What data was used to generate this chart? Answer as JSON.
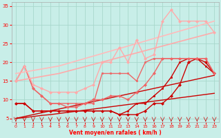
{
  "bg_color": "#c8eee8",
  "grid_color": "#a8d8cc",
  "text_color": "#ff0000",
  "xlabel": "Vent moyen/en rafales ( km/h )",
  "xlim": [
    -0.5,
    23.5
  ],
  "ylim": [
    4,
    36
  ],
  "yticks": [
    5,
    10,
    15,
    20,
    25,
    30,
    35
  ],
  "xticks": [
    0,
    1,
    2,
    3,
    4,
    5,
    6,
    7,
    8,
    9,
    10,
    11,
    12,
    13,
    14,
    15,
    16,
    17,
    18,
    19,
    20,
    21,
    22,
    23
  ],
  "lines": [
    {
      "x": [
        0,
        1,
        2,
        3,
        4,
        5,
        6,
        7,
        8,
        9,
        10,
        11,
        12,
        13,
        14,
        15,
        16,
        17,
        18,
        19,
        20,
        21,
        22,
        23
      ],
      "y": [
        5,
        5.5,
        6,
        6.5,
        7,
        7.5,
        8,
        8.5,
        9,
        9.5,
        10,
        10.5,
        11,
        11.5,
        12,
        12.5,
        13,
        13.5,
        14,
        14.5,
        15,
        15.5,
        16,
        16.5
      ],
      "color": "#cc0000",
      "lw": 1.0,
      "marker": null,
      "ms": 0
    },
    {
      "x": [
        0,
        1,
        2,
        3,
        4,
        5,
        6,
        7,
        8,
        9,
        10,
        11,
        12,
        13,
        14,
        15,
        16,
        17,
        18,
        19,
        20,
        21,
        22,
        23
      ],
      "y": [
        5,
        5.2,
        5.5,
        5.8,
        6,
        6.3,
        6.6,
        6.9,
        7.2,
        7.5,
        7.8,
        8.1,
        8.4,
        8.7,
        9,
        9.3,
        9.6,
        9.9,
        10.2,
        10.5,
        10.8,
        11.1,
        11.4,
        11.7
      ],
      "color": "#cc0000",
      "lw": 1.0,
      "marker": null,
      "ms": 0
    },
    {
      "x": [
        0,
        1,
        2,
        3,
        4,
        5,
        6,
        7,
        8,
        9,
        10,
        11,
        12,
        13,
        14,
        15,
        16,
        17,
        18,
        19,
        20,
        21,
        22,
        23
      ],
      "y": [
        9,
        9,
        7,
        7,
        7,
        7,
        7,
        7,
        7,
        7,
        7,
        7,
        6,
        6,
        6,
        7,
        9,
        9,
        11,
        14,
        20,
        21,
        20,
        17
      ],
      "color": "#cc0000",
      "lw": 1.0,
      "marker": "D",
      "ms": 2.0
    },
    {
      "x": [
        0,
        1,
        2,
        3,
        4,
        5,
        6,
        7,
        8,
        9,
        10,
        11,
        12,
        13,
        14,
        15,
        16,
        17,
        18,
        19,
        20,
        21,
        22,
        23
      ],
      "y": [
        9,
        9,
        7,
        7,
        7,
        7,
        7,
        7,
        7,
        7,
        7,
        7,
        6,
        7,
        9,
        9,
        11,
        13,
        16,
        20,
        21,
        21,
        19,
        17
      ],
      "color": "#cc0000",
      "lw": 1.0,
      "marker": "s",
      "ms": 2.0
    },
    {
      "x": [
        0,
        1,
        2,
        3,
        4,
        5,
        6,
        7,
        8,
        9,
        10,
        11,
        12,
        13,
        14,
        15,
        16,
        17,
        18,
        19,
        20,
        21,
        22,
        23
      ],
      "y": [
        15,
        19,
        13,
        11,
        9,
        9,
        8,
        8,
        9,
        10,
        10,
        11,
        11,
        10,
        12,
        14,
        17,
        21,
        21,
        21,
        21,
        21,
        21,
        17
      ],
      "color": "#ee6666",
      "lw": 1.0,
      "marker": "D",
      "ms": 2.0
    },
    {
      "x": [
        0,
        1,
        2,
        3,
        4,
        5,
        6,
        7,
        8,
        9,
        10,
        11,
        12,
        13,
        14,
        15,
        16,
        17,
        18,
        19,
        20,
        21,
        22,
        23
      ],
      "y": [
        15,
        19,
        13,
        11,
        9,
        9,
        9,
        9,
        9,
        9,
        17,
        17,
        17,
        17,
        15,
        20,
        21,
        21,
        21,
        21,
        21,
        21,
        21,
        17
      ],
      "color": "#ee6666",
      "lw": 1.0,
      "marker": "s",
      "ms": 2.0
    },
    {
      "x": [
        0,
        5,
        23
      ],
      "y": [
        15,
        17,
        28
      ],
      "color": "#ffaaaa",
      "lw": 1.2,
      "marker": null,
      "ms": 0
    },
    {
      "x": [
        0,
        5,
        23
      ],
      "y": [
        17,
        19,
        31
      ],
      "color": "#ffbbbb",
      "lw": 1.2,
      "marker": null,
      "ms": 0
    },
    {
      "x": [
        0,
        1,
        2,
        3,
        4,
        5,
        6,
        7,
        8,
        9,
        10,
        11,
        12,
        13,
        14,
        15,
        16,
        17,
        18,
        19,
        20,
        21,
        22,
        23
      ],
      "y": [
        15,
        19,
        14,
        13,
        12,
        12,
        12,
        12,
        13,
        14,
        20,
        20,
        24,
        20,
        26,
        21,
        22,
        31,
        34,
        31,
        31,
        31,
        31,
        28
      ],
      "color": "#ffaaaa",
      "lw": 1.0,
      "marker": "D",
      "ms": 2.0
    }
  ]
}
